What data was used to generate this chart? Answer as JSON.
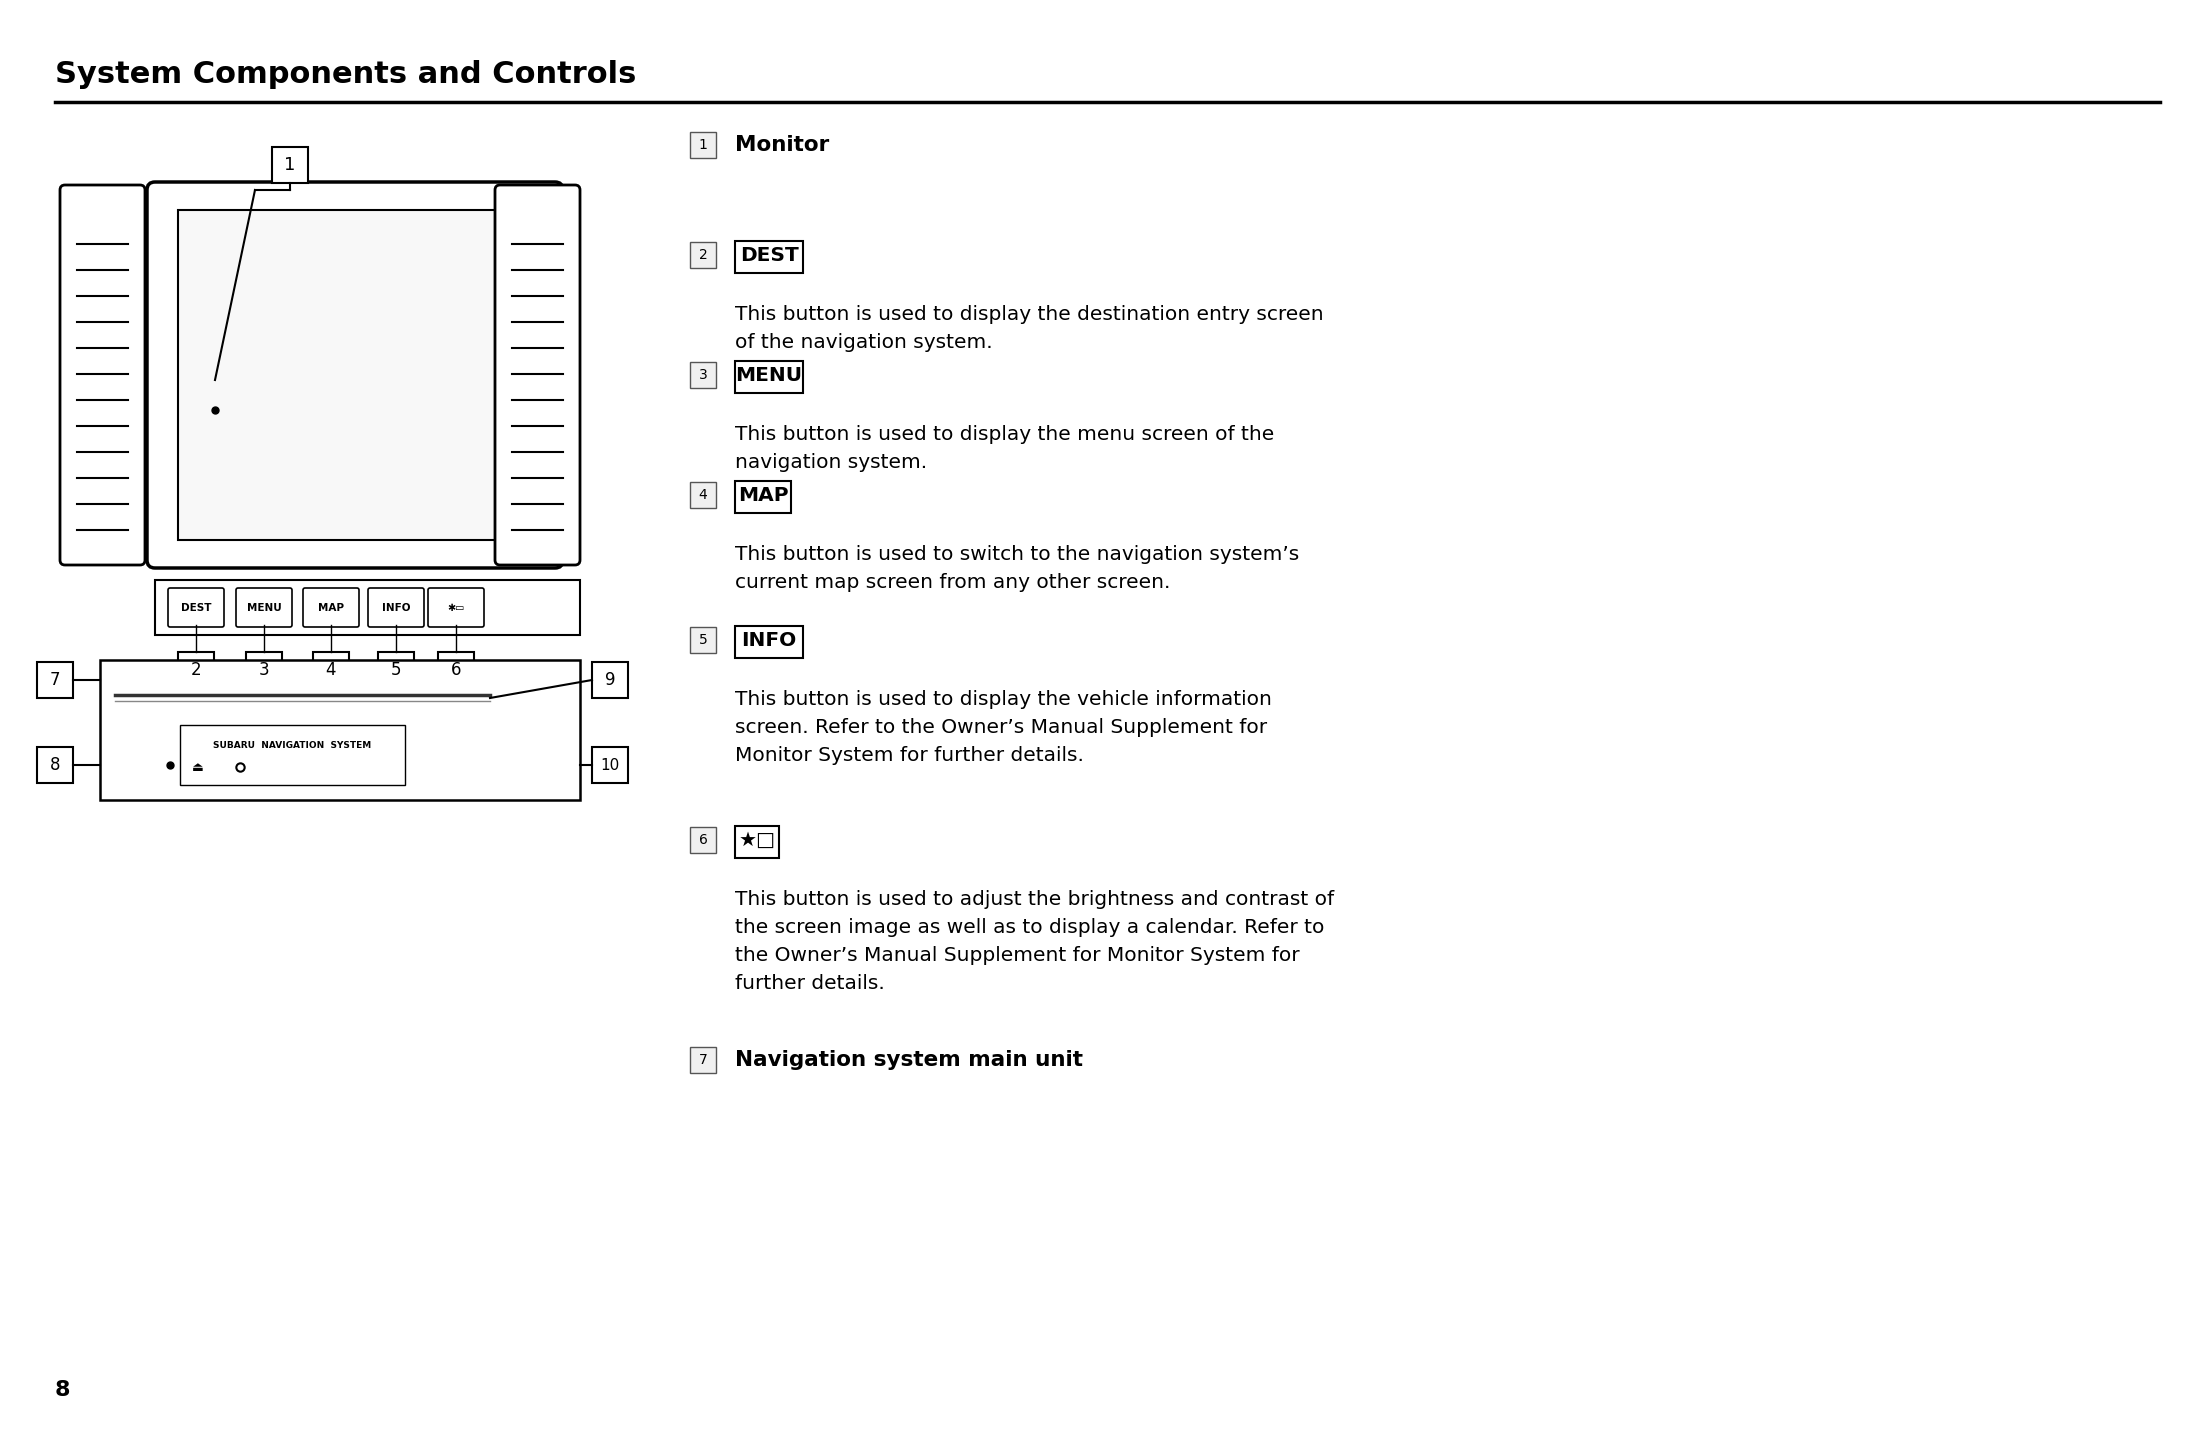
{
  "title": "System Components and Controls",
  "bg_color": "#ffffff",
  "title_color": "#000000",
  "title_fontsize": 22,
  "separator_color": "#000000",
  "page_number": "8",
  "right_items": [
    {
      "num": "1",
      "label": "Monitor",
      "bold": true,
      "desc": "",
      "has_box": false
    },
    {
      "num": "2",
      "label": "DEST",
      "bold": false,
      "desc": "This button is used to display the destination entry screen\nof the navigation system.",
      "has_box": true
    },
    {
      "num": "3",
      "label": "MENU",
      "bold": false,
      "desc": "This button is used to display the menu screen of the\nnavigation system.",
      "has_box": true
    },
    {
      "num": "4",
      "label": "MAP",
      "bold": false,
      "desc": "This button is used to switch to the navigation system’s\ncurrent map screen from any other screen.",
      "has_box": true
    },
    {
      "num": "5",
      "label": "INFO",
      "bold": false,
      "desc": "This button is used to display the vehicle information\nscreen. Refer to the Owner’s Manual Supplement for\nMonitor System for further details.",
      "has_box": true
    },
    {
      "num": "6",
      "label": "★□",
      "bold": false,
      "desc": "This button is used to adjust the brightness and contrast of\nthe screen image as well as to display a calendar. Refer to\nthe Owner’s Manual Supplement for Monitor System for\nfurther details.",
      "has_box": true
    },
    {
      "num": "7",
      "label": "Navigation system main unit",
      "bold": true,
      "desc": "",
      "has_box": false
    }
  ]
}
